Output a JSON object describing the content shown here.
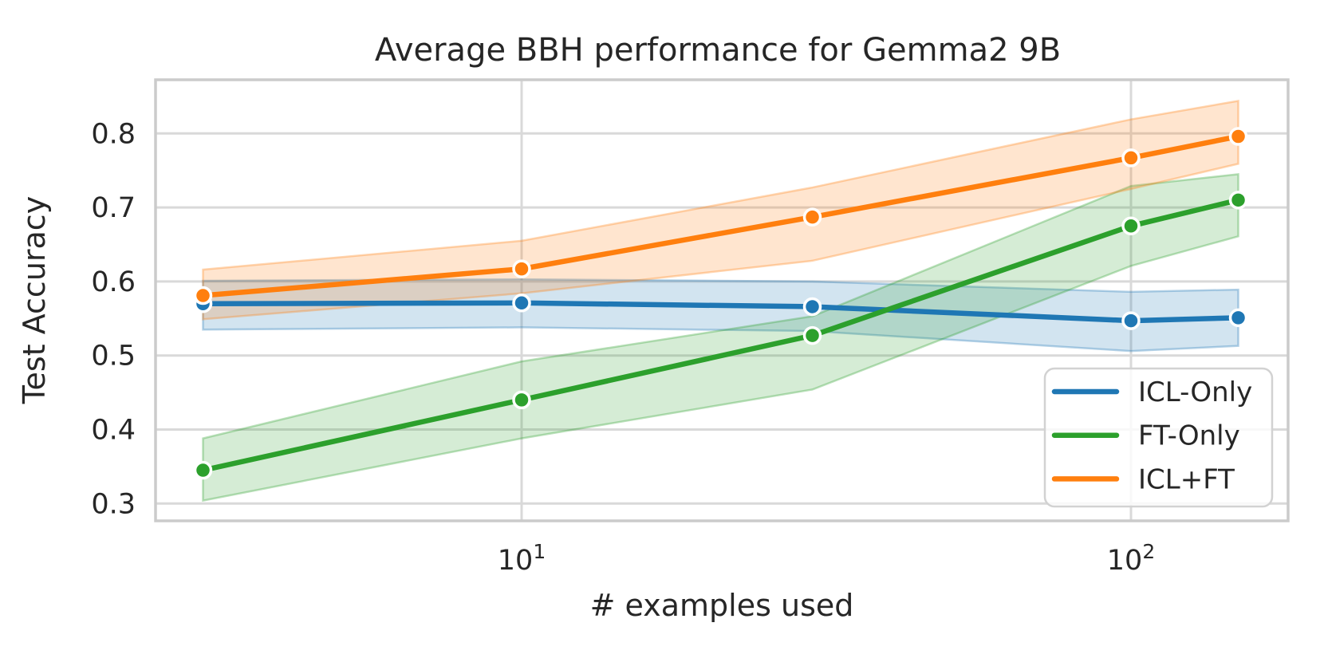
{
  "chart_data": {
    "type": "line",
    "title": "Average BBH performance for Gemma2 9B",
    "xlabel": "# examples used",
    "ylabel": "Test Accuracy",
    "xscale": "log",
    "grid": true,
    "xlim": [
      2.5,
      181
    ],
    "ylim": [
      0.277,
      0.873
    ],
    "x": [
      3,
      10,
      30,
      100,
      150
    ],
    "series": [
      {
        "name": "ICL-Only",
        "color": "#1f77b4",
        "values": [
          0.57,
          0.571,
          0.566,
          0.547,
          0.551
        ],
        "ci_lower": [
          0.535,
          0.538,
          0.533,
          0.506,
          0.513
        ],
        "ci_upper": [
          0.601,
          0.603,
          0.6,
          0.586,
          0.589
        ]
      },
      {
        "name": "FT-Only",
        "color": "#2ca02c",
        "values": [
          0.345,
          0.44,
          0.527,
          0.675,
          0.71
        ],
        "ci_lower": [
          0.304,
          0.388,
          0.454,
          0.621,
          0.661
        ],
        "ci_upper": [
          0.388,
          0.492,
          0.553,
          0.729,
          0.745
        ]
      },
      {
        "name": "ICL+FT",
        "color": "#ff7f0e",
        "values": [
          0.581,
          0.617,
          0.687,
          0.767,
          0.796
        ],
        "ci_lower": [
          0.549,
          0.584,
          0.628,
          0.725,
          0.759
        ],
        "ci_upper": [
          0.616,
          0.655,
          0.727,
          0.819,
          0.844
        ]
      }
    ],
    "yticks": {
      "values": [
        0.3,
        0.4,
        0.5,
        0.6,
        0.7,
        0.8
      ],
      "labels": [
        "0.3",
        "0.4",
        "0.5",
        "0.6",
        "0.7",
        "0.8"
      ]
    },
    "xticks": [
      {
        "value": 10,
        "base": "10",
        "exponent": "1"
      },
      {
        "value": 100,
        "base": "10",
        "exponent": "2"
      }
    ],
    "legend": {
      "position": "lower right",
      "entries": [
        "ICL-Only",
        "FT-Only",
        "ICL+FT"
      ]
    },
    "band_alpha": 0.2,
    "colors": {
      "grid": "#d9d9d9",
      "spine": "#cbcbcb",
      "text": "#262626"
    }
  }
}
